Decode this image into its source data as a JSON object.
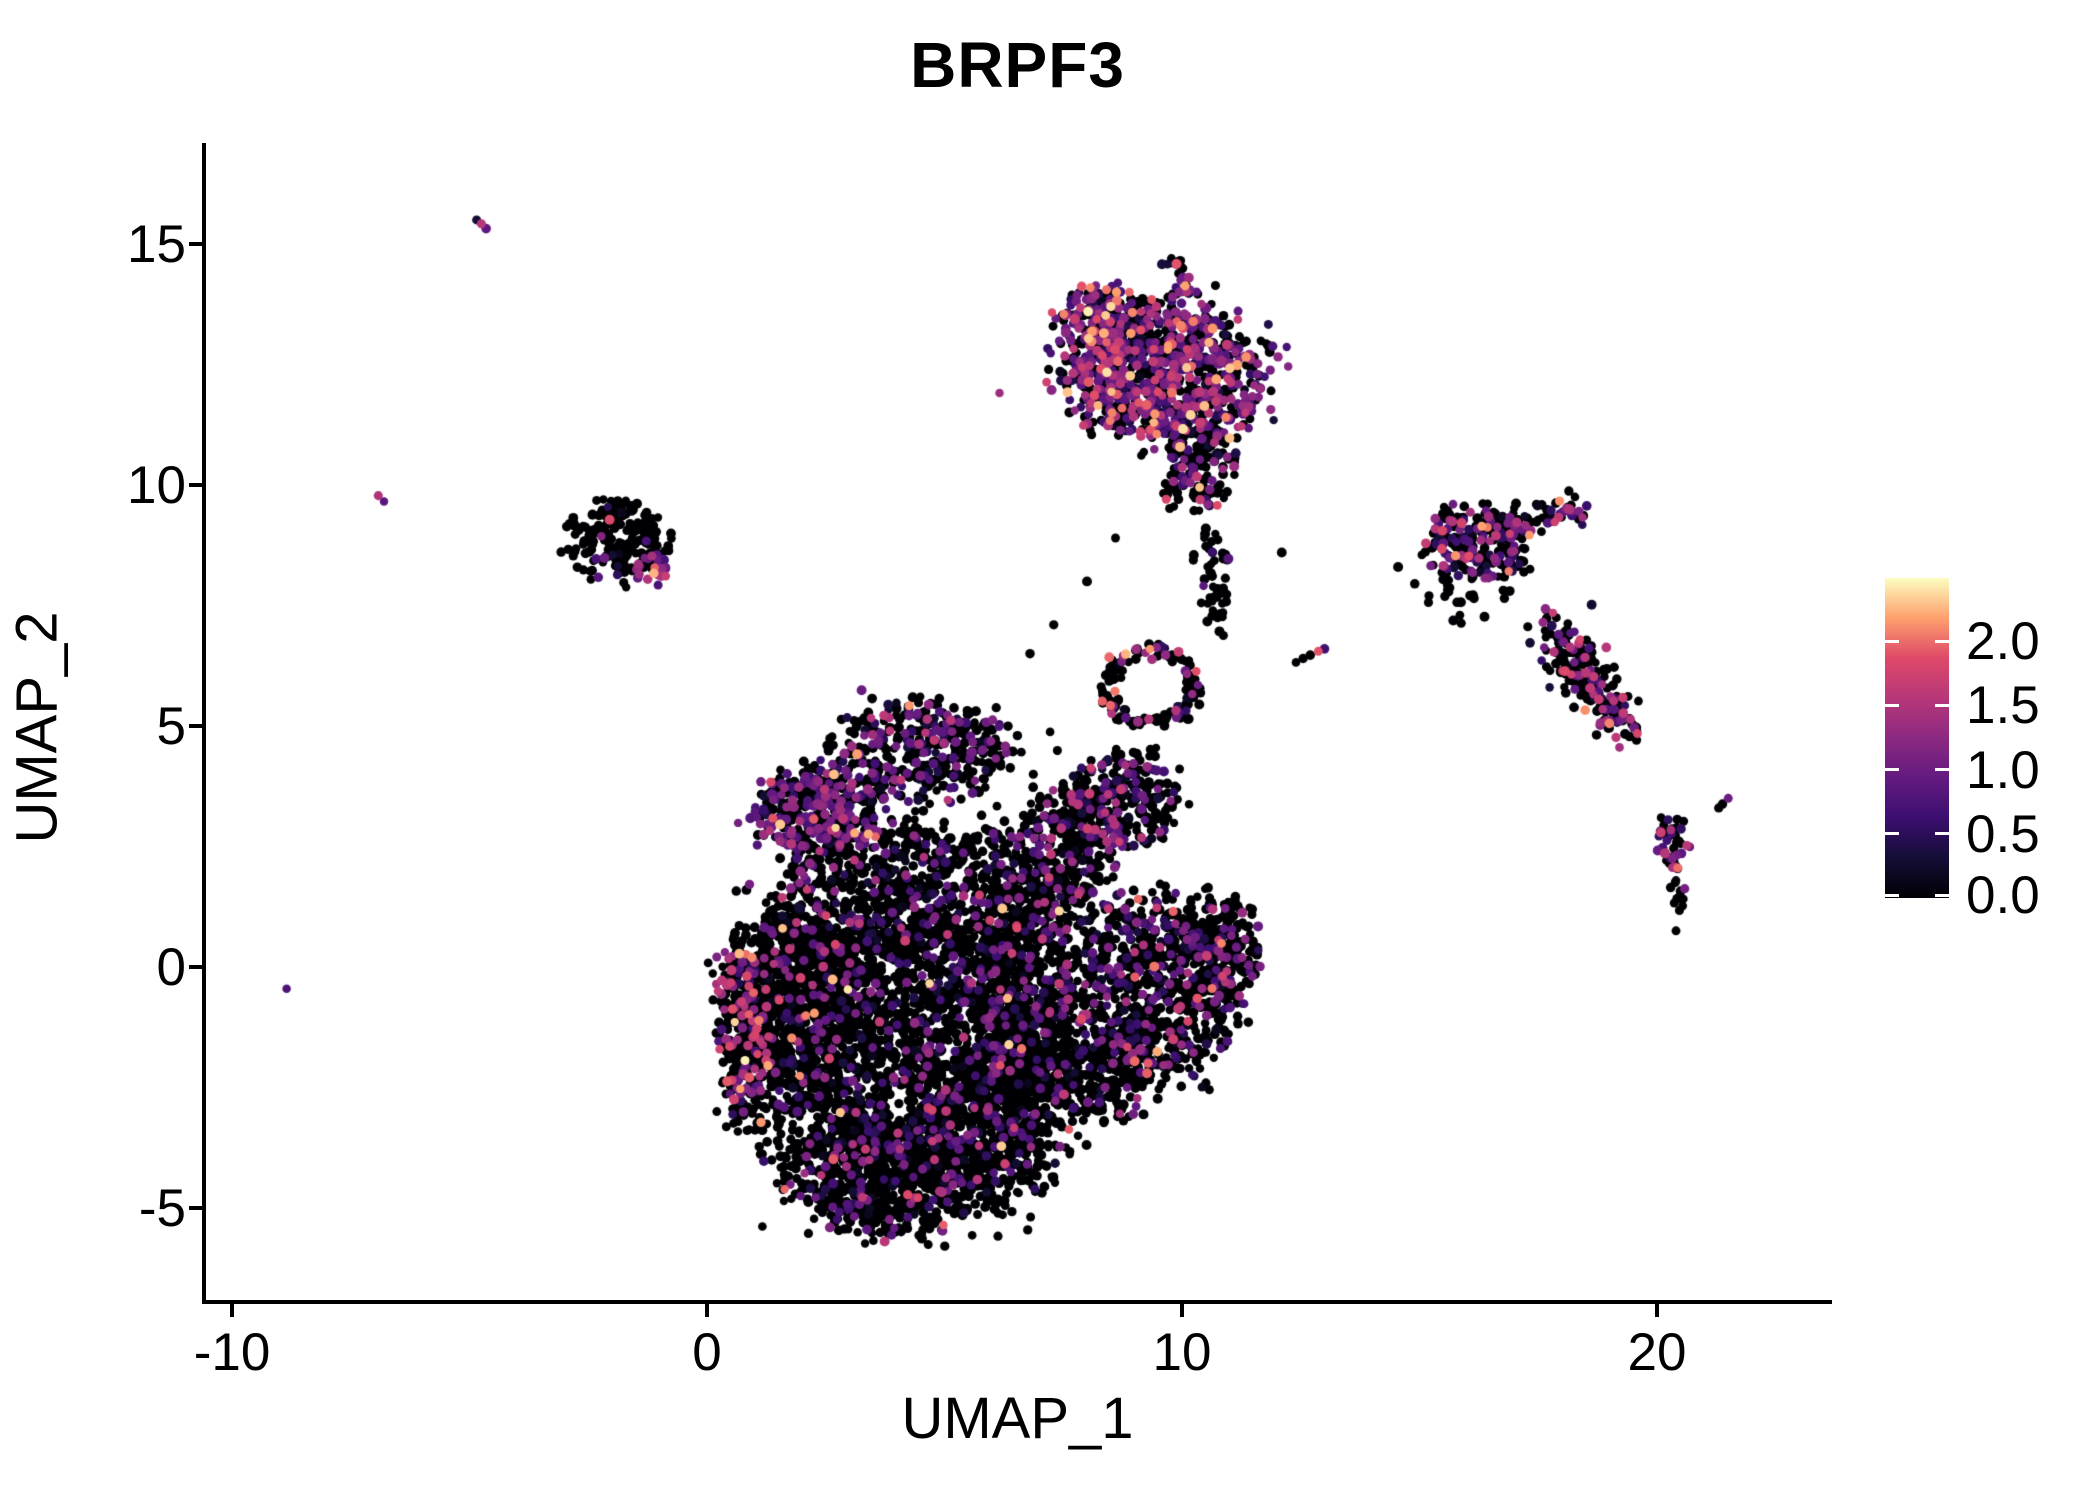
{
  "chart_data": {
    "type": "scatter",
    "title": "BRPF3",
    "xlabel": "UMAP_1",
    "ylabel": "UMAP_2",
    "xlim": [
      -10.6,
      23.6
    ],
    "ylim": [
      -6.95,
      17.1
    ],
    "grid": false,
    "x_ticks": [
      {
        "value": -10,
        "label": "-10"
      },
      {
        "value": 0,
        "label": "0"
      },
      {
        "value": 10,
        "label": "10"
      },
      {
        "value": 20,
        "label": "20"
      }
    ],
    "y_ticks": [
      {
        "value": 15,
        "label": "15"
      },
      {
        "value": 10,
        "label": "10"
      },
      {
        "value": 5,
        "label": "5"
      },
      {
        "value": 0,
        "label": "0"
      },
      {
        "value": -5,
        "label": "-5"
      }
    ],
    "colorbar": {
      "domain": [
        0,
        2.493
      ],
      "palette": "magma",
      "stops": [
        "#000004",
        "#140E36",
        "#3B0F70",
        "#641A80",
        "#8C2981",
        "#B73779",
        "#DE4968",
        "#FE9F6D",
        "#FCFDBF"
      ],
      "ticks": [
        {
          "value": 2.0,
          "label": "2.0"
        },
        {
          "value": 1.5,
          "label": "1.5"
        },
        {
          "value": 1.0,
          "label": "1.0"
        },
        {
          "value": 0.5,
          "label": "0.5"
        },
        {
          "value": 0.0,
          "label": "0.0"
        }
      ]
    },
    "point_radius_px": 4.6,
    "seed": 20240607,
    "clusters": [
      {
        "name": "central-core",
        "type": "blob",
        "cx": 4.2,
        "cy": -1.6,
        "rx": 3.4,
        "ry": 3.2,
        "n": 2400,
        "fc": 0.13,
        "vm": 0.7,
        "vs": 0.4,
        "hot": 0.03
      },
      {
        "name": "central-left",
        "type": "blob",
        "cx": 1.9,
        "cy": -0.6,
        "rx": 1.3,
        "ry": 2.2,
        "n": 650,
        "fc": 0.17,
        "vm": 1.0,
        "vs": 0.5,
        "hot": 0.08
      },
      {
        "name": "central-left-rim",
        "type": "blob",
        "cx": 0.75,
        "cy": -1.3,
        "rx": 0.55,
        "ry": 1.9,
        "n": 240,
        "fc": 0.3,
        "vm": 1.2,
        "vs": 0.5,
        "hot": 0.1
      },
      {
        "name": "central-bottom",
        "type": "blob",
        "cx": 3.6,
        "cy": -4.4,
        "rx": 1.7,
        "ry": 1.2,
        "n": 480,
        "fc": 0.18,
        "vm": 0.8,
        "vs": 0.45,
        "hot": 0.05
      },
      {
        "name": "central-bottom-right",
        "type": "blob",
        "cx": 5.9,
        "cy": -3.4,
        "rx": 1.5,
        "ry": 1.6,
        "n": 480,
        "fc": 0.15,
        "vm": 0.75,
        "vs": 0.4,
        "hot": 0.04
      },
      {
        "name": "central-mid-right",
        "type": "blob",
        "cx": 6.6,
        "cy": -0.5,
        "rx": 1.2,
        "ry": 2.2,
        "n": 560,
        "fc": 0.2,
        "vm": 0.8,
        "vs": 0.45,
        "hot": 0.04
      },
      {
        "name": "central-upper",
        "type": "blob",
        "cx": 4.5,
        "cy": 1.7,
        "rx": 2.3,
        "ry": 1.4,
        "n": 520,
        "fc": 0.15,
        "vm": 0.7,
        "vs": 0.4,
        "hot": 0.03
      },
      {
        "name": "purple-band",
        "type": "blob",
        "cx": 2.3,
        "cy": 3.2,
        "rx": 1.35,
        "ry": 0.95,
        "n": 400,
        "fc": 0.5,
        "vm": 0.9,
        "vs": 0.4,
        "hot": 0.04
      },
      {
        "name": "top-lobe",
        "type": "blob",
        "cx": 4.5,
        "cy": 4.5,
        "rx": 1.9,
        "ry": 1.0,
        "n": 400,
        "fc": 0.28,
        "vm": 0.8,
        "vs": 0.4,
        "hot": 0.03
      },
      {
        "name": "bridge",
        "type": "blob",
        "cx": 7.5,
        "cy": 2.3,
        "rx": 1.0,
        "ry": 1.4,
        "n": 300,
        "fc": 0.22,
        "vm": 0.8,
        "vs": 0.45,
        "hot": 0.05
      },
      {
        "name": "arm-upper-right",
        "type": "blob",
        "cx": 8.7,
        "cy": 3.5,
        "rx": 1.1,
        "ry": 0.95,
        "n": 260,
        "fc": 0.3,
        "vm": 0.85,
        "vs": 0.45,
        "hot": 0.05
      },
      {
        "name": "right-lobe",
        "type": "blob",
        "cx": 9.4,
        "cy": -0.4,
        "rx": 1.7,
        "ry": 1.9,
        "n": 760,
        "fc": 0.22,
        "vm": 0.85,
        "vs": 0.45,
        "hot": 0.05
      },
      {
        "name": "right-lobe-ext",
        "type": "blob",
        "cx": 10.9,
        "cy": 0.4,
        "rx": 0.8,
        "ry": 1.0,
        "n": 170,
        "fc": 0.25,
        "vm": 0.9,
        "vs": 0.45,
        "hot": 0.05
      },
      {
        "name": "right-lobe-bottom",
        "type": "blob",
        "cx": 8.2,
        "cy": -2.2,
        "rx": 1.1,
        "ry": 1.0,
        "n": 240,
        "fc": 0.2,
        "vm": 0.8,
        "vs": 0.4,
        "hot": 0.05
      },
      {
        "name": "loop",
        "type": "ring",
        "cx": 9.35,
        "cy": 5.8,
        "rx": 1.05,
        "ry": 0.85,
        "n": 140,
        "fc": 0.3,
        "vm": 1.0,
        "vs": 0.6,
        "hot": 0.12
      },
      {
        "name": "tail-line",
        "type": "line",
        "x1": 10.55,
        "y1": 8.95,
        "x2": 10.75,
        "y2": 7.1,
        "jitter": 0.16,
        "n": 55,
        "fc": 0.06,
        "vm": 0.6,
        "vs": 0.3,
        "hot": 0
      },
      {
        "name": "top-cluster",
        "type": "blob",
        "cx": 9.6,
        "cy": 12.3,
        "rx": 2.05,
        "ry": 1.4,
        "n": 950,
        "fc": 0.55,
        "vm": 1.0,
        "vs": 0.5,
        "hot": 0.1
      },
      {
        "name": "top-cluster-left",
        "type": "blob",
        "cx": 8.3,
        "cy": 13.4,
        "rx": 0.95,
        "ry": 0.65,
        "n": 150,
        "fc": 0.6,
        "vm": 1.0,
        "vs": 0.45,
        "hot": 0.08
      },
      {
        "name": "top-protrusion",
        "type": "line",
        "x1": 9.8,
        "y1": 14.65,
        "x2": 10.1,
        "y2": 13.85,
        "jitter": 0.14,
        "n": 26,
        "fc": 0.5,
        "vm": 1.0,
        "vs": 0.45,
        "hot": 0.06
      },
      {
        "name": "top-bottom-tail",
        "type": "blob",
        "cx": 10.4,
        "cy": 10.3,
        "rx": 0.8,
        "ry": 0.85,
        "n": 130,
        "fc": 0.3,
        "vm": 1.0,
        "vs": 0.5,
        "hot": 0.08
      },
      {
        "name": "right1",
        "type": "blob",
        "cx": 16.2,
        "cy": 8.8,
        "rx": 1.05,
        "ry": 0.8,
        "n": 230,
        "fc": 0.42,
        "vm": 0.95,
        "vs": 0.5,
        "hot": 0.08
      },
      {
        "name": "right1-arm",
        "type": "line",
        "x1": 16.9,
        "y1": 9.1,
        "x2": 18.3,
        "y2": 9.55,
        "jitter": 0.18,
        "n": 60,
        "fc": 0.42,
        "vm": 0.95,
        "vs": 0.5,
        "hot": 0.06
      },
      {
        "name": "right1-below",
        "type": "line",
        "x1": 15.5,
        "y1": 8.0,
        "x2": 16.1,
        "y2": 7.6,
        "jitter": 0.25,
        "n": 18,
        "fc": 0.15,
        "vm": 0.7,
        "vs": 0.4,
        "hot": 0
      },
      {
        "name": "right2-upper",
        "type": "line",
        "x1": 17.8,
        "y1": 7.0,
        "x2": 18.55,
        "y2": 6.0,
        "jitter": 0.28,
        "n": 115,
        "fc": 0.38,
        "vm": 0.95,
        "vs": 0.5,
        "hot": 0.08
      },
      {
        "name": "right2-lower",
        "type": "line",
        "x1": 18.55,
        "y1": 6.0,
        "x2": 19.35,
        "y2": 4.8,
        "jitter": 0.24,
        "n": 105,
        "fc": 0.38,
        "vm": 0.95,
        "vs": 0.5,
        "hot": 0.06
      },
      {
        "name": "small-right",
        "type": "blob",
        "cx": 20.35,
        "cy": 2.55,
        "rx": 0.35,
        "ry": 0.6,
        "n": 46,
        "fc": 0.4,
        "vm": 1.0,
        "vs": 0.5,
        "hot": 0.1
      },
      {
        "name": "small-right-tail",
        "type": "line",
        "x1": 20.5,
        "y1": 1.95,
        "x2": 20.45,
        "y2": 1.05,
        "jitter": 0.08,
        "n": 12,
        "fc": 0.2,
        "vm": 0.8,
        "vs": 0.4,
        "hot": 0
      },
      {
        "name": "nw-cluster",
        "type": "blob",
        "cx": -1.9,
        "cy": 8.9,
        "rx": 1.0,
        "ry": 0.8,
        "n": 200,
        "fc": 0.06,
        "vm": 0.7,
        "vs": 0.35,
        "hot": 0.02
      },
      {
        "name": "nw-magenta",
        "type": "blob",
        "cx": -1.15,
        "cy": 8.25,
        "rx": 0.38,
        "ry": 0.3,
        "n": 26,
        "fc": 0.8,
        "vm": 1.1,
        "vs": 0.35,
        "hot": 0.05
      }
    ],
    "singles": [
      [
        -4.85,
        15.5,
        0.3
      ],
      [
        -4.75,
        15.42,
        1.55
      ],
      [
        -4.65,
        15.32,
        0.9
      ],
      [
        -6.92,
        9.78,
        1.5
      ],
      [
        -6.8,
        9.66,
        0.85
      ],
      [
        -8.85,
        -0.45,
        0.75
      ],
      [
        -2.05,
        9.28,
        1.85
      ],
      [
        12.4,
        6.32,
        0
      ],
      [
        12.55,
        6.4,
        0
      ],
      [
        12.7,
        6.47,
        0
      ],
      [
        12.87,
        6.55,
        1.9
      ],
      [
        13.0,
        6.6,
        0.65
      ],
      [
        12.1,
        8.6,
        0
      ],
      [
        14.9,
        7.95,
        0
      ],
      [
        15.2,
        7.7,
        0
      ],
      [
        14.55,
        8.3,
        0
      ],
      [
        15.05,
        8.55,
        0
      ],
      [
        8.0,
        8.0,
        0
      ],
      [
        7.3,
        7.1,
        0
      ],
      [
        6.8,
        6.5,
        0
      ],
      [
        8.6,
        8.9,
        0
      ],
      [
        21.3,
        3.3,
        0
      ],
      [
        21.38,
        3.38,
        0
      ],
      [
        21.5,
        3.5,
        1.0
      ],
      [
        20.4,
        0.75,
        0
      ],
      [
        16.9,
        7.8,
        0
      ],
      [
        15.85,
        7.3,
        0
      ]
    ]
  }
}
